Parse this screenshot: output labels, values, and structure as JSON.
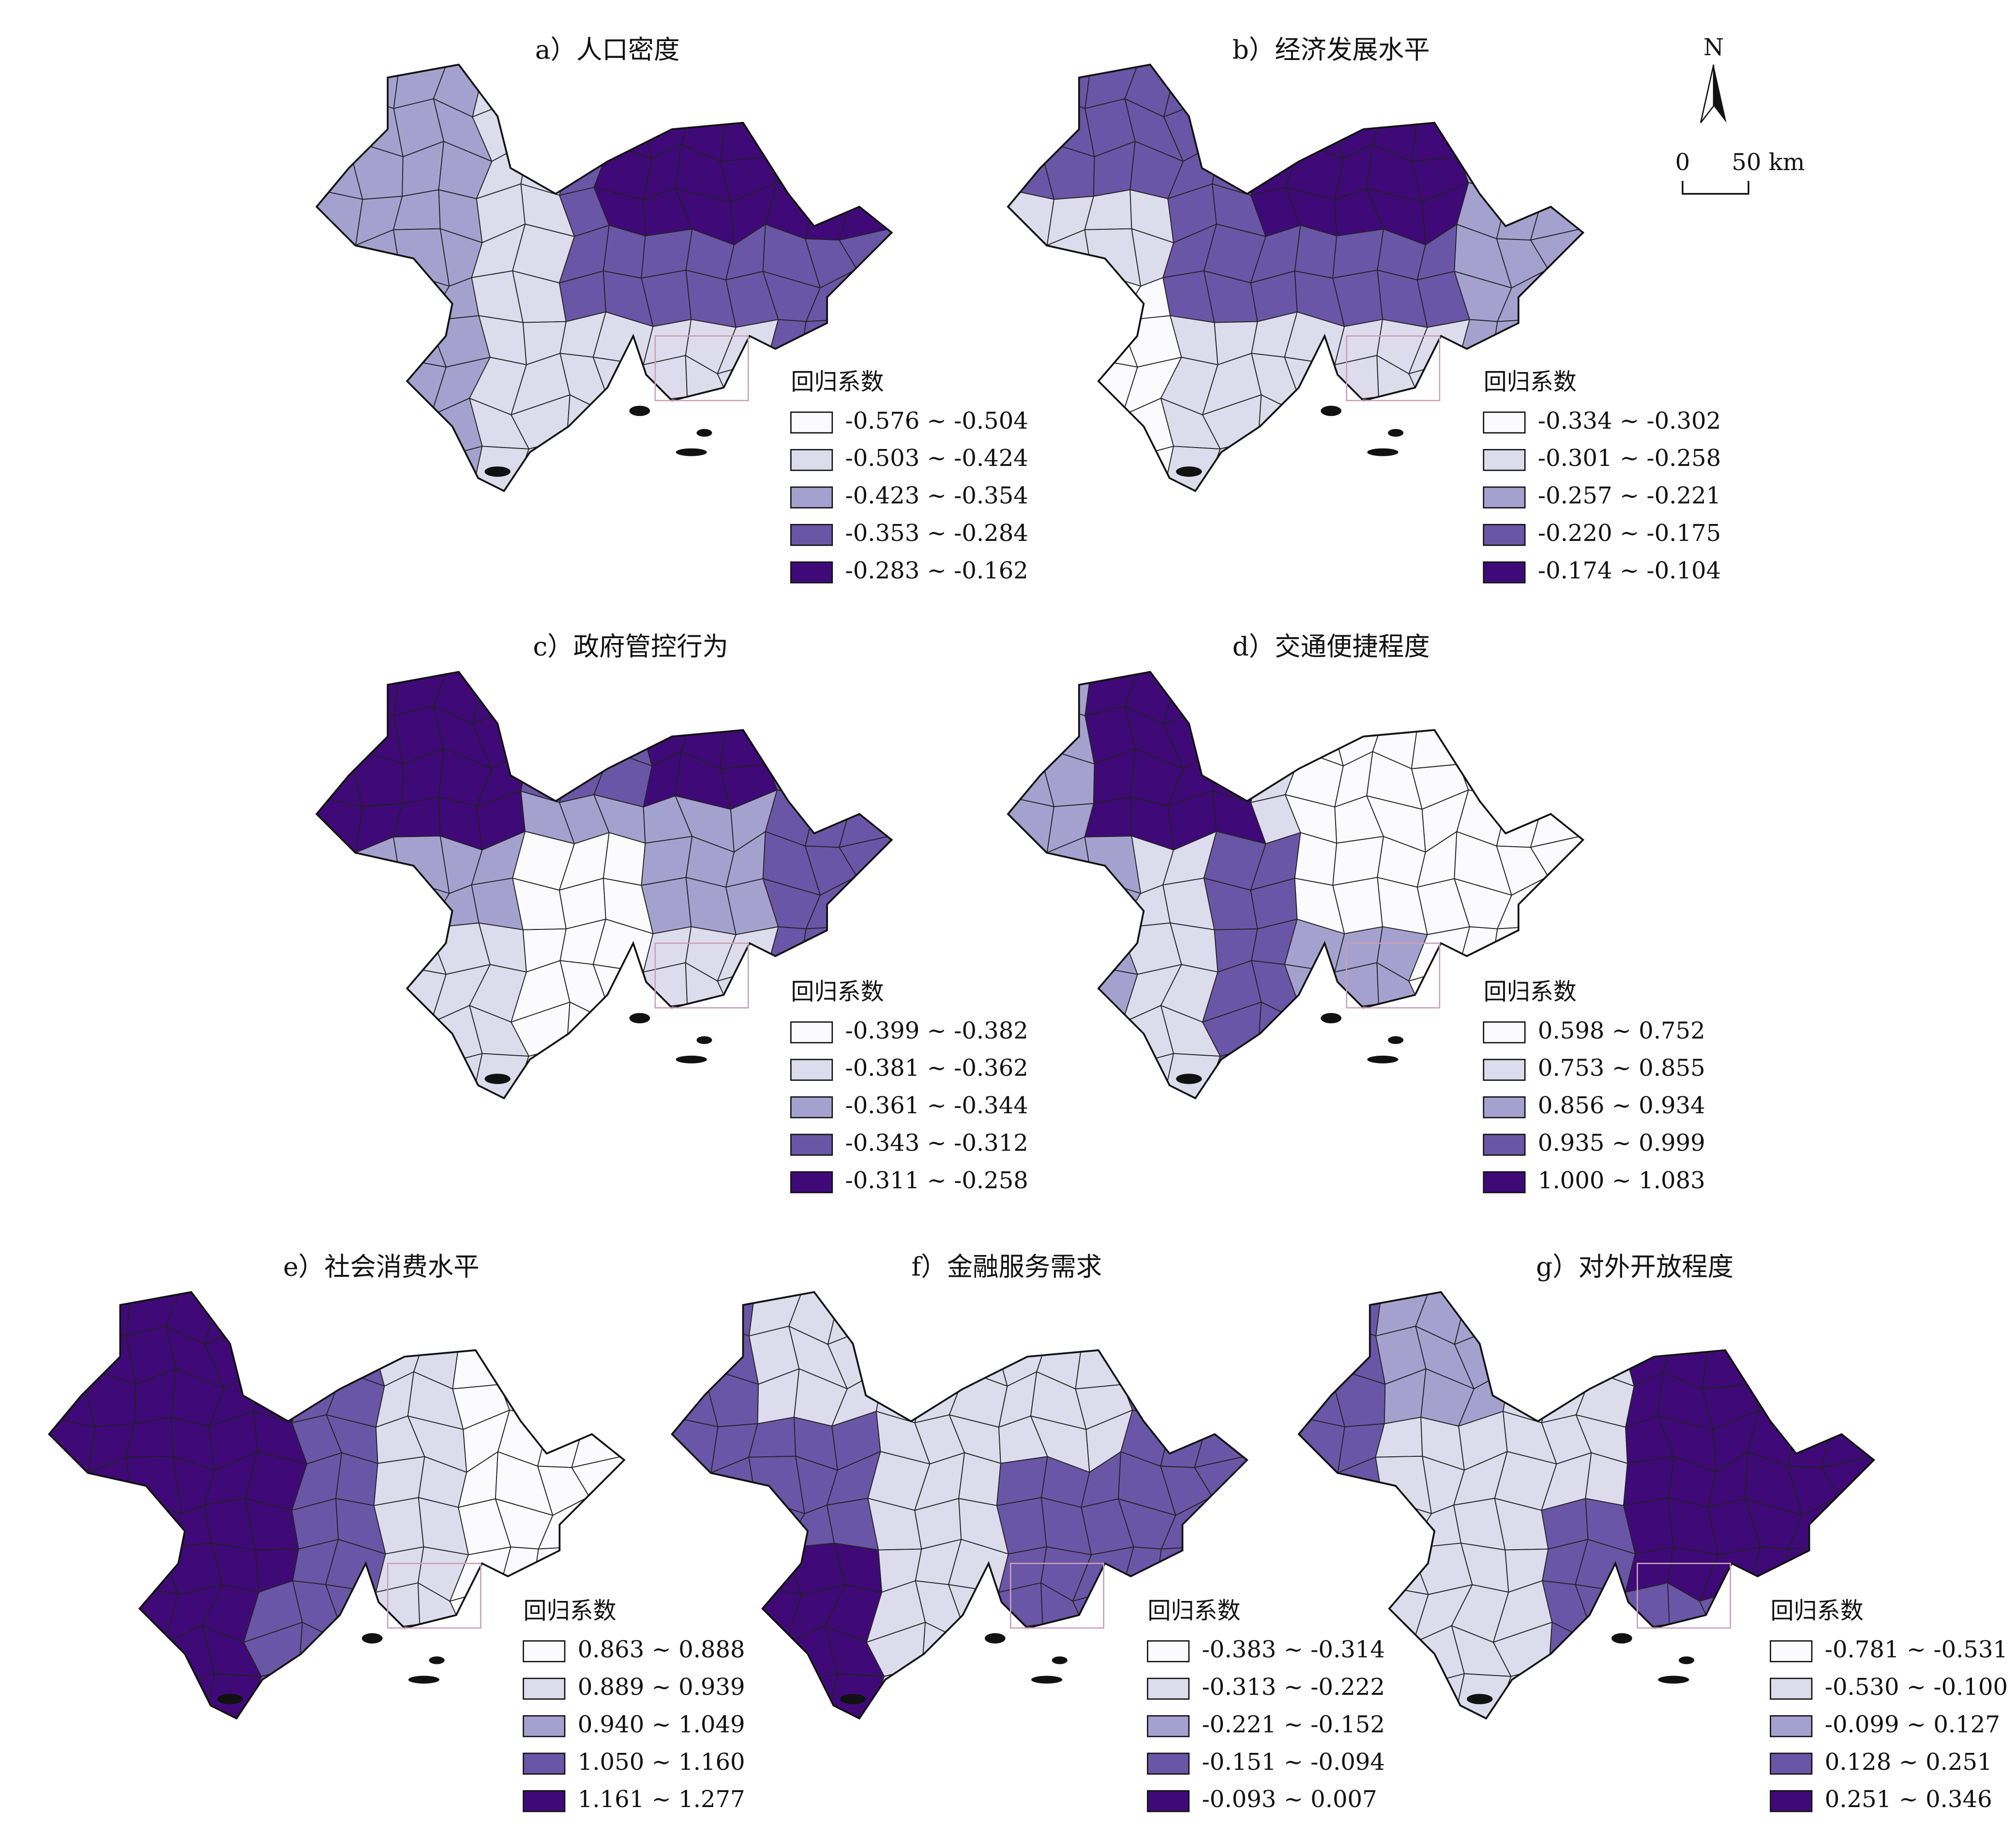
{
  "north": "N",
  "scale": {
    "start": "0",
    "end": "50 km"
  },
  "panels": [
    {
      "title": "a）人口密度",
      "legend_title": "回归系数",
      "legend": [
        "-0.576 ~ -0.504",
        "-0.503 ~ -0.424",
        "-0.423 ~ -0.354",
        "-0.353 ~ -0.284",
        "-0.283 ~ -0.162"
      ]
    },
    {
      "title": "b）经济发展水平",
      "legend_title": "回归系数",
      "legend": [
        "-0.334 ~ -0.302",
        "-0.301 ~ -0.258",
        "-0.257 ~ -0.221",
        "-0.220 ~ -0.175",
        "-0.174 ~ -0.104"
      ]
    },
    {
      "title": "c）政府管控行为",
      "legend_title": "回归系数",
      "legend": [
        "-0.399 ~ -0.382",
        "-0.381 ~ -0.362",
        "-0.361 ~ -0.344",
        "-0.343 ~ -0.312",
        "-0.311 ~ -0.258"
      ]
    },
    {
      "title": "d）交通便捷程度",
      "legend_title": "回归系数",
      "legend": [
        "0.598 ~ 0.752",
        "0.753 ~ 0.855",
        "0.856 ~ 0.934",
        "0.935 ~ 0.999",
        "1.000 ~ 1.083"
      ]
    },
    {
      "title": "e）社会消费水平",
      "legend_title": "回归系数",
      "legend": [
        "0.863 ~ 0.888",
        "0.889 ~ 0.939",
        "0.940 ~ 1.049",
        "1.050 ~ 1.160",
        "1.161 ~ 1.277"
      ]
    },
    {
      "title": "f）金融服务需求",
      "legend_title": "回归系数",
      "legend": [
        "-0.383 ~ -0.314",
        "-0.313 ~ -0.222",
        "-0.221 ~ -0.152",
        "-0.151 ~ -0.094",
        "-0.093 ~ 0.007"
      ]
    },
    {
      "title": "g）对外开放程度",
      "legend_title": "回归系数",
      "legend": [
        "-0.781 ~ -0.531",
        "-0.530 ~ -0.100",
        "-0.099 ~ 0.127",
        "0.128 ~ 0.251",
        "0.251 ~ 0.346"
      ]
    }
  ]
}
